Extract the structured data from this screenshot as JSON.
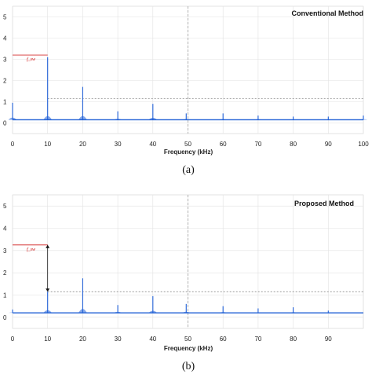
{
  "chart_data": [
    {
      "type": "line",
      "title": "Conventional Method",
      "caption": "(a)",
      "xlabel": "Frequency (kHz)",
      "ylabel": "",
      "xlim": [
        0,
        100
      ],
      "ylim": [
        -0.5,
        5.5
      ],
      "xticks": [
        "0",
        "10",
        "20",
        "30",
        "40",
        "50",
        "60",
        "70",
        "80",
        "90",
        "100"
      ],
      "yticks": [
        "0",
        "1",
        "2",
        "3",
        "4",
        "5"
      ],
      "grid": true,
      "reference_line_y": 1.15,
      "marker_line_x": 50,
      "annotation": {
        "label": "f_sw",
        "x_from": 0,
        "x_to": 10,
        "y": 3.2
      },
      "baseline": 0.15,
      "series": [
        {
          "values": [
            {
              "x": 0,
              "y": 0.95
            },
            {
              "x": 10,
              "y": 3.1
            },
            {
              "x": 20,
              "y": 1.7
            },
            {
              "x": 30,
              "y": 0.55
            },
            {
              "x": 40,
              "y": 0.9
            },
            {
              "x": 49.5,
              "y": 0.45
            },
            {
              "x": 60,
              "y": 0.45
            },
            {
              "x": 70,
              "y": 0.35
            },
            {
              "x": 80,
              "y": 0.3
            },
            {
              "x": 90,
              "y": 0.3
            },
            {
              "x": 100,
              "y": 0.35
            }
          ]
        }
      ],
      "color": "#1f5fd6"
    },
    {
      "type": "line",
      "title": "Proposed Method",
      "caption": "(b)",
      "xlabel": "Frequency (kHz)",
      "ylabel": "",
      "xlim": [
        0,
        100
      ],
      "ylim": [
        -0.5,
        5.5
      ],
      "xticks": [
        "0",
        "10",
        "20",
        "30",
        "40",
        "50",
        "60",
        "70",
        "80",
        "90",
        ""
      ],
      "yticks": [
        "0",
        "1",
        "2",
        "3",
        "4",
        "5"
      ],
      "grid": true,
      "reference_line_y": 1.15,
      "marker_line_x": 50,
      "annotation": {
        "label": "f_sw",
        "x_from": 0,
        "x_to": 10,
        "y": 3.25,
        "arrow_to_y": 1.15
      },
      "baseline": 0.2,
      "series": [
        {
          "values": [
            {
              "x": 0,
              "y": 0.35
            },
            {
              "x": 10,
              "y": 1.15
            },
            {
              "x": 20,
              "y": 1.75
            },
            {
              "x": 30,
              "y": 0.55
            },
            {
              "x": 40,
              "y": 0.95
            },
            {
              "x": 49.5,
              "y": 0.6
            },
            {
              "x": 60,
              "y": 0.5
            },
            {
              "x": 70,
              "y": 0.4
            },
            {
              "x": 80,
              "y": 0.45
            },
            {
              "x": 90,
              "y": 0.3
            }
          ]
        }
      ],
      "color": "#1f5fd6"
    }
  ]
}
